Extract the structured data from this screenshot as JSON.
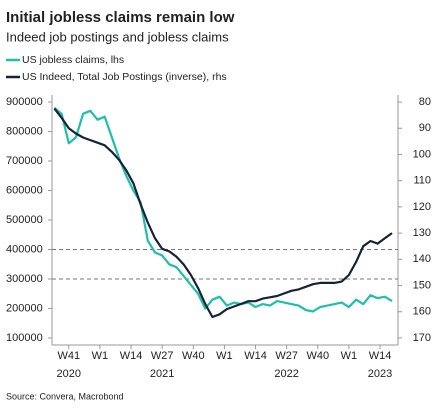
{
  "chart_data": {
    "type": "line",
    "title": "Initial jobless claims remain low",
    "subtitle": "Indeed job postings and jobless claims",
    "source": "Source: Convera, Macrobond",
    "x": [
      -6,
      -3,
      0,
      3,
      6,
      9,
      12,
      15,
      18,
      21,
      24,
      27,
      30,
      33,
      36,
      39,
      42,
      45,
      48,
      51,
      54,
      57,
      60,
      63,
      66,
      69,
      72,
      75,
      78,
      81,
      84,
      87,
      90,
      93,
      96,
      99,
      102,
      105,
      108,
      111,
      114,
      117,
      120,
      123,
      126,
      129,
      132,
      135
    ],
    "xlim": [
      -7,
      137.5
    ],
    "xticks": [
      {
        "value": 0,
        "label": "W41"
      },
      {
        "value": 13,
        "label": "W1"
      },
      {
        "value": 26,
        "label": "W14"
      },
      {
        "value": 39,
        "label": "W27"
      },
      {
        "value": 52,
        "label": "W40"
      },
      {
        "value": 65,
        "label": "W1"
      },
      {
        "value": 78,
        "label": "W14"
      },
      {
        "value": 91,
        "label": "W27"
      },
      {
        "value": 104,
        "label": "W40"
      },
      {
        "value": 117,
        "label": "W1"
      },
      {
        "value": 130,
        "label": "W14"
      }
    ],
    "year_labels": [
      {
        "value": 0,
        "label": "2020"
      },
      {
        "value": 39,
        "label": "2021"
      },
      {
        "value": 91,
        "label": "2022"
      },
      {
        "value": 130,
        "label": "2023"
      }
    ],
    "ylim": [
      76300,
      923700
    ],
    "yticks": [
      100000,
      200000,
      300000,
      400000,
      500000,
      600000,
      700000,
      800000,
      900000
    ],
    "y2lim": [
      172.7,
      77.3
    ],
    "y2ticks": [
      80,
      90,
      100,
      110,
      120,
      130,
      140,
      150,
      160,
      170
    ],
    "hlines": [
      400000,
      300000
    ],
    "series": [
      {
        "name": "US jobless claims, lhs",
        "color": "#1fbfa9",
        "values": [
          880000,
          860000,
          760000,
          780000,
          860000,
          870000,
          840000,
          850000,
          780000,
          710000,
          650000,
          600000,
          560000,
          430000,
          390000,
          380000,
          350000,
          340000,
          310000,
          280000,
          250000,
          200000,
          230000,
          240000,
          210000,
          220000,
          215000,
          220000,
          205000,
          215000,
          210000,
          225000,
          220000,
          215000,
          210000,
          195000,
          190000,
          205000,
          210000,
          215000,
          220000,
          205000,
          230000,
          215000,
          245000,
          235000,
          240000,
          225000
        ]
      },
      {
        "name": "US Indeed, Total Job Postings (inverse), rhs",
        "color": "#16223a",
        "axis": "y2",
        "values": [
          82.5,
          86,
          90,
          92,
          93.5,
          94.5,
          95.5,
          96.5,
          99,
          102,
          106,
          111,
          119,
          126,
          132,
          136,
          137,
          139,
          142,
          146,
          151,
          157,
          162,
          161,
          159,
          158,
          157,
          156,
          156,
          155,
          154.5,
          154,
          153,
          152,
          151.5,
          150.5,
          149.5,
          149,
          149,
          149,
          148.5,
          146,
          141,
          135,
          133,
          134,
          132,
          130
        ]
      }
    ]
  }
}
